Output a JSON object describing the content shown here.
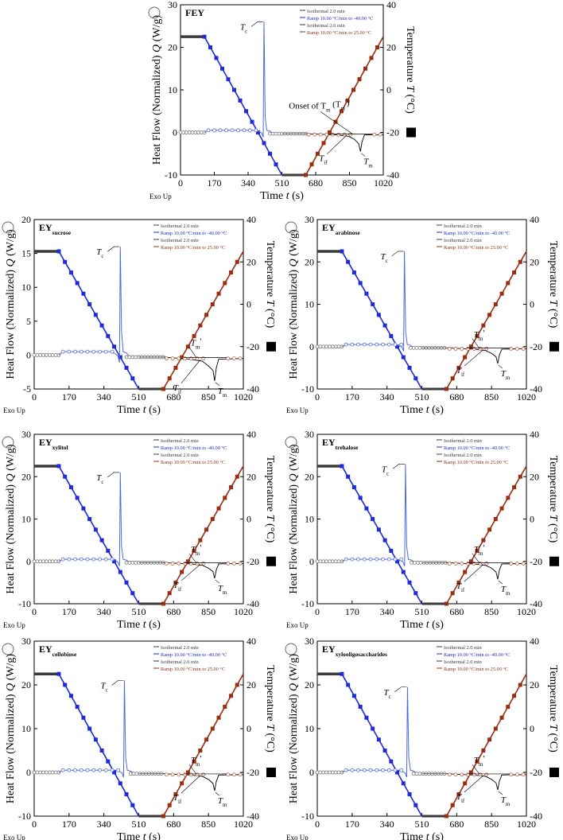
{
  "colors": {
    "isothermal": "#3a3a3a",
    "cooling": "#1e2bd6",
    "heating": "#9a2e12",
    "heat_flow_iso": "#707070",
    "heat_flow_cool": "#4f6ad8",
    "heat_flow_heat": "#c06040",
    "melt_curve": "#000000"
  },
  "common": {
    "xlabel_prefix": "Time ",
    "xlabel_var": "t",
    "xlabel_unit": " (s)",
    "ylabel_left": "Heat Flow (Normalized)",
    "ylabel_left_var": "Q",
    "ylabel_left_unit": "(W/g)",
    "ylabel_right": "Temperature",
    "ylabel_right_var": "T",
    "ylabel_right_unit": "(°C)",
    "exo_label": "Exo Up",
    "legend": [
      "Isothermal 2.0 min",
      "Ramp 10.00 °C/min to -40.00 °C",
      "Isothermal 2.0 min",
      "Ramp 10.00 °C/min to 25.00 °C"
    ],
    "tc_main": "T",
    "tc_sub": "c",
    "tif_main": "T",
    "tif_sub": "if",
    "tm_main": "T",
    "tm_sub": "m"
  },
  "chart_data": [
    {
      "id": "FEY",
      "type": "line",
      "title_main": "FEY",
      "title_sub": "",
      "x_ticks": [
        "0",
        "170",
        "340",
        "510",
        "680",
        "850",
        "1020"
      ],
      "xlim": [
        0,
        1020
      ],
      "ylim_left": [
        -10,
        30
      ],
      "y_ticks_left": [
        "-10",
        "0",
        "10",
        "20",
        "30"
      ],
      "ylim_right": [
        -40,
        40
      ],
      "y_ticks_right": [
        "-40",
        "-20",
        "0",
        "20",
        "40"
      ],
      "flow_baseline": 0,
      "flow_plateau": 0.5,
      "tc_time": 420,
      "tc_peak": 26.0,
      "tm_time": 905,
      "tm_depth": -4.5,
      "isothermal_start_temp": 25,
      "tm_label": "onset",
      "onset_label": "Onset of T",
      "onset_label_tail": " (T",
      "onset_label_end": "')"
    },
    {
      "id": "EY_sucrose",
      "type": "line",
      "title_main": "EY",
      "title_sub": "sucrose",
      "x_ticks": [
        "0",
        "170",
        "340",
        "510",
        "680",
        "850",
        "1020"
      ],
      "xlim": [
        0,
        1020
      ],
      "ylim_left": [
        -5,
        20
      ],
      "y_ticks_left": [
        "-5",
        "0",
        "5",
        "10",
        "15",
        "20"
      ],
      "ylim_right": [
        -40,
        40
      ],
      "y_ticks_right": [
        "-40",
        "-20",
        "0",
        "20",
        "40"
      ],
      "flow_baseline": 0,
      "flow_plateau": 0.5,
      "tc_time": 420,
      "tc_peak": 16.0,
      "tm_time": 880,
      "tm_depth": -3.8,
      "isothermal_start_temp": 25,
      "tm_label": "prime",
      "tmprime": "T",
      "tmprime_sub": "m",
      "tmprime_tail": "'",
      "tif_text": "T",
      "tif_sub_text": "if",
      "tm_text": "T",
      "tm_sub_text": "m"
    },
    {
      "id": "EY_arabinose",
      "type": "line",
      "title_main": "EY",
      "title_sub": "arabinose",
      "x_ticks": [
        "0",
        "170",
        "340",
        "510",
        "680",
        "850",
        "1020"
      ],
      "xlim": [
        0,
        1020
      ],
      "ylim_left": [
        -10,
        30
      ],
      "y_ticks_left": [
        "-10",
        "0",
        "10",
        "20",
        "30"
      ],
      "ylim_right": [
        -40,
        40
      ],
      "y_ticks_right": [
        "-40",
        "-20",
        "0",
        "20",
        "40"
      ],
      "flow_baseline": 0,
      "flow_plateau": 0.5,
      "tc_time": 425,
      "tc_peak": 22.5,
      "tm_time": 880,
      "tm_depth": -4.0,
      "isothermal_start_temp": 25,
      "tm_label": "prime",
      "tmprime": "T",
      "tmprime_sub": "m",
      "tmprime_tail": "'"
    },
    {
      "id": "EY_xylitol",
      "type": "line",
      "title_main": "EY",
      "title_sub": "xylitol",
      "x_ticks": [
        "0",
        "170",
        "340",
        "510",
        "680",
        "850",
        "1020"
      ],
      "xlim": [
        0,
        1020
      ],
      "ylim_left": [
        -10,
        30
      ],
      "y_ticks_left": [
        "-10",
        "0",
        "10",
        "20",
        "30"
      ],
      "ylim_right": [
        -40,
        40
      ],
      "y_ticks_right": [
        "-40",
        "-20",
        "0",
        "20",
        "40"
      ],
      "flow_baseline": 0,
      "flow_plateau": 0.5,
      "tc_time": 420,
      "tc_peak": 21.0,
      "tm_time": 880,
      "tm_depth": -4.0,
      "isothermal_start_temp": 25,
      "tm_label": "prime",
      "tmprime": "T",
      "tmprime_sub": "m",
      "tmprime_tail": "'"
    },
    {
      "id": "EY_trehalose",
      "type": "line",
      "title_main": "EY",
      "title_sub": "trehalose",
      "x_ticks": [
        "0",
        "170",
        "340",
        "510",
        "680",
        "850",
        "1020"
      ],
      "xlim": [
        0,
        1020
      ],
      "ylim_left": [
        -10,
        30
      ],
      "y_ticks_left": [
        "-10",
        "0",
        "10",
        "20",
        "30"
      ],
      "ylim_right": [
        -40,
        40
      ],
      "y_ticks_right": [
        "-40",
        "-20",
        "0",
        "20",
        "40"
      ],
      "flow_baseline": 0,
      "flow_plateau": 0.5,
      "tc_time": 430,
      "tc_peak": 23.0,
      "tm_time": 880,
      "tm_depth": -4.2,
      "isothermal_start_temp": 25,
      "tm_label": "prime",
      "tmprime": "T",
      "tmprime_sub": "m",
      "tmprime_tail": "'"
    },
    {
      "id": "EY_cellobiose",
      "type": "line",
      "title_main": "EY",
      "title_sub": "cellobiose",
      "x_ticks": [
        "0",
        "170",
        "340",
        "510",
        "680",
        "850",
        "1020"
      ],
      "xlim": [
        0,
        1020
      ],
      "ylim_left": [
        -10,
        30
      ],
      "y_ticks_left": [
        "-10",
        "0",
        "10",
        "20",
        "30"
      ],
      "ylim_right": [
        -40,
        40
      ],
      "y_ticks_right": [
        "-40",
        "-20",
        "0",
        "20",
        "40"
      ],
      "flow_baseline": 0,
      "flow_plateau": 0.5,
      "tc_time": 440,
      "tc_peak": 21.0,
      "tm_time": 880,
      "tm_depth": -4.2,
      "isothermal_start_temp": 25,
      "tm_label": "prime",
      "tmprime": "T",
      "tmprime_sub": "m",
      "tmprime_tail": "'"
    },
    {
      "id": "EY_xylooligosaccharides",
      "type": "line",
      "title_main": "EY",
      "title_sub": "xylooligosaccharides",
      "x_ticks": [
        "0",
        "170",
        "340",
        "510",
        "680",
        "850",
        "1020"
      ],
      "xlim": [
        0,
        1020
      ],
      "ylim_left": [
        -10,
        30
      ],
      "y_ticks_left": [
        "-10",
        "0",
        "10",
        "20",
        "30"
      ],
      "ylim_right": [
        -40,
        40
      ],
      "y_ticks_right": [
        "-40",
        "-20",
        "0",
        "20",
        "40"
      ],
      "flow_baseline": 0,
      "flow_plateau": 0.5,
      "tc_time": 440,
      "tc_peak": 19.5,
      "tm_time": 880,
      "tm_depth": -4.0,
      "isothermal_start_temp": 25,
      "tm_label": "prime",
      "tmprime": "T",
      "tmprime_sub": "m",
      "tmprime_tail": "'"
    }
  ]
}
